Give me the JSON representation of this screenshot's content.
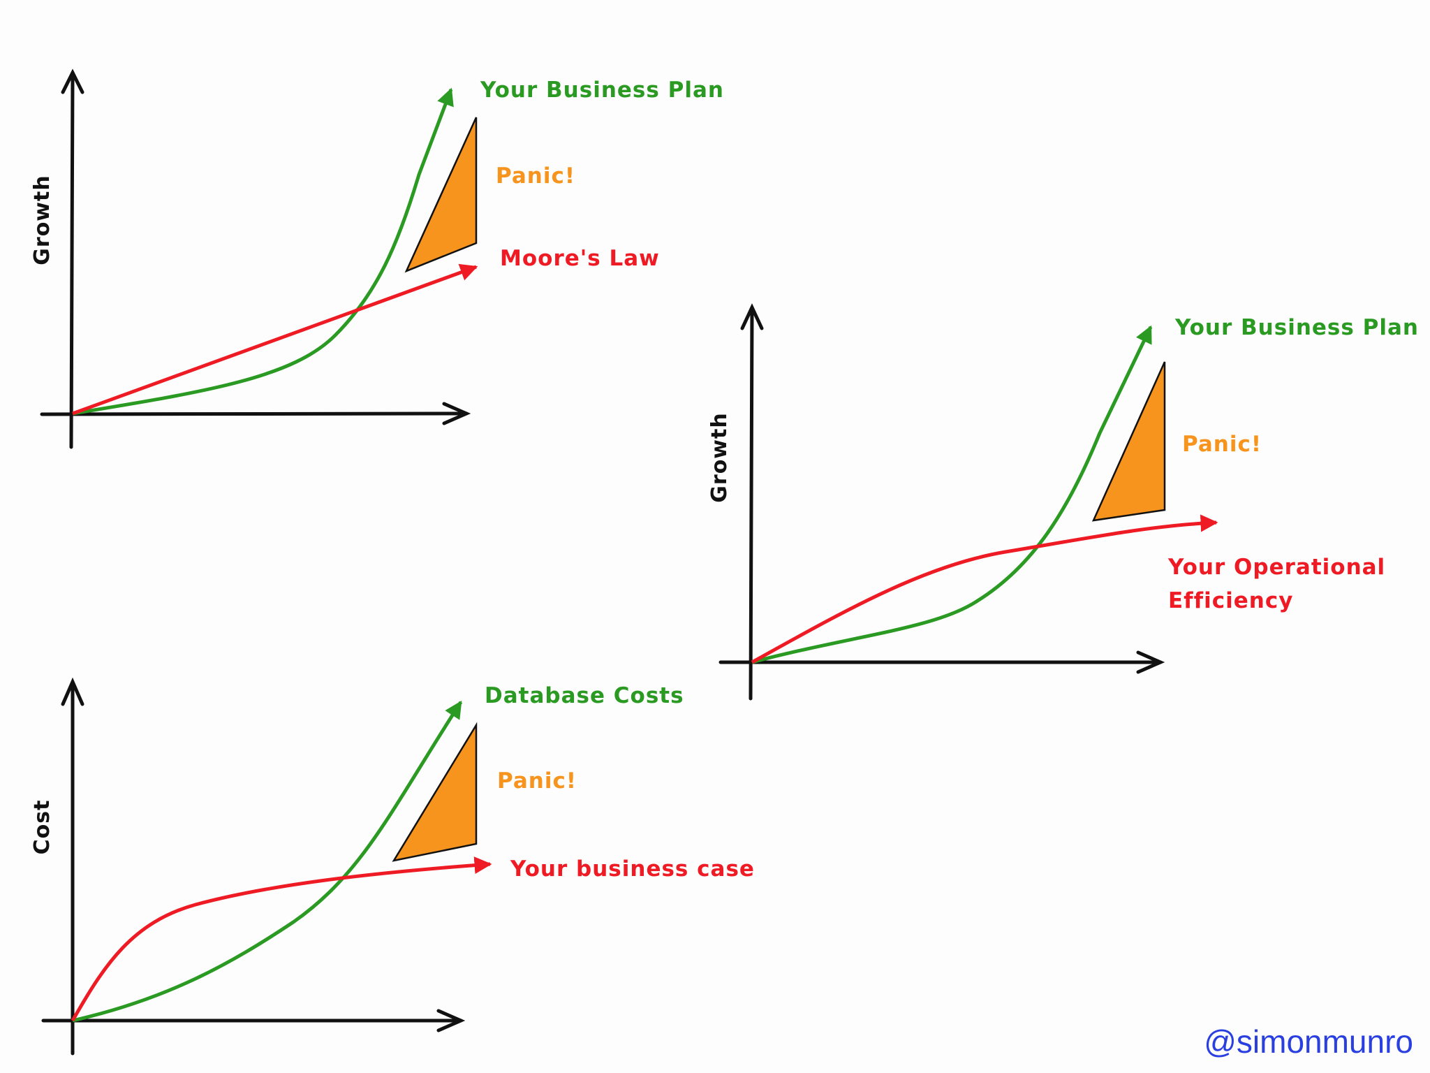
{
  "colors": {
    "green": "#2a9a22",
    "red": "#ee1b24",
    "orange": "#f7941d",
    "axis": "#111111",
    "handle": "#2a3fe0"
  },
  "diagrams": [
    {
      "ylabel": "Growth",
      "green_label": "Your Business Plan",
      "red_label": "Moore's Law",
      "panic_label": "Panic!"
    },
    {
      "ylabel": "Growth",
      "green_label": "Your Business Plan",
      "red_label_line1": "Your Operational",
      "red_label_line2": "Efficiency",
      "panic_label": "Panic!"
    },
    {
      "ylabel": "Cost",
      "green_label": "Database Costs",
      "red_label": "Your business case",
      "panic_label": "Panic!"
    }
  ],
  "handle": "@simonmunro"
}
